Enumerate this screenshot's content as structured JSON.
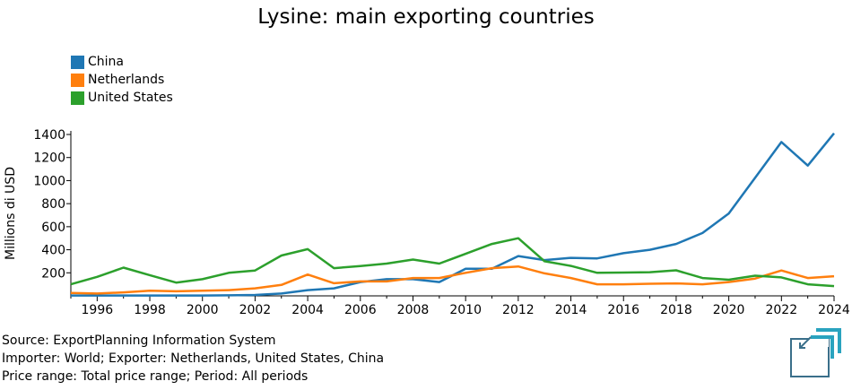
{
  "chart_data": {
    "type": "line",
    "title": "Lysine: main exporting countries",
    "ylabel": "Millions di USD",
    "xlabel": "",
    "xlim": [
      1995,
      2024
    ],
    "ylim": [
      0,
      1400
    ],
    "x_ticks": [
      1996,
      1998,
      2000,
      2002,
      2004,
      2006,
      2008,
      2010,
      2012,
      2014,
      2016,
      2018,
      2020,
      2022,
      2024
    ],
    "y_ticks": [
      200,
      400,
      600,
      800,
      1000,
      1200,
      1400
    ],
    "grid": false,
    "legend_position": "top-left",
    "x": [
      1995,
      1996,
      1997,
      1998,
      1999,
      2000,
      2001,
      2002,
      2003,
      2004,
      2005,
      2006,
      2007,
      2008,
      2009,
      2010,
      2011,
      2012,
      2013,
      2014,
      2015,
      2016,
      2017,
      2018,
      2019,
      2020,
      2021,
      2022,
      2023,
      2024
    ],
    "series": [
      {
        "name": "China",
        "color": "#1f77b4",
        "values": [
          3,
          3,
          3,
          3,
          3,
          3,
          5,
          8,
          20,
          50,
          65,
          120,
          145,
          145,
          120,
          235,
          235,
          345,
          310,
          330,
          325,
          370,
          400,
          450,
          545,
          715,
          1025,
          1335,
          1130,
          1410
        ]
      },
      {
        "name": "Netherlands",
        "color": "#ff7f0e",
        "values": [
          25,
          20,
          30,
          45,
          40,
          45,
          50,
          65,
          95,
          185,
          110,
          125,
          125,
          155,
          155,
          200,
          240,
          255,
          195,
          155,
          100,
          100,
          105,
          108,
          100,
          120,
          150,
          220,
          155,
          170
        ]
      },
      {
        "name": "United States",
        "color": "#2ca02c",
        "values": [
          100,
          165,
          245,
          180,
          115,
          145,
          200,
          220,
          350,
          405,
          240,
          258,
          280,
          315,
          280,
          365,
          450,
          500,
          300,
          260,
          200,
          202,
          205,
          222,
          155,
          140,
          175,
          160,
          100,
          85
        ]
      }
    ]
  },
  "footer": {
    "source": "Source: ExportPlanning Information System",
    "filters": "Importer: World; Exporter: Netherlands, United States, China",
    "range": "Price range: Total price range; Period: All periods"
  },
  "logo_icon": "exportplanning-logo-icon"
}
